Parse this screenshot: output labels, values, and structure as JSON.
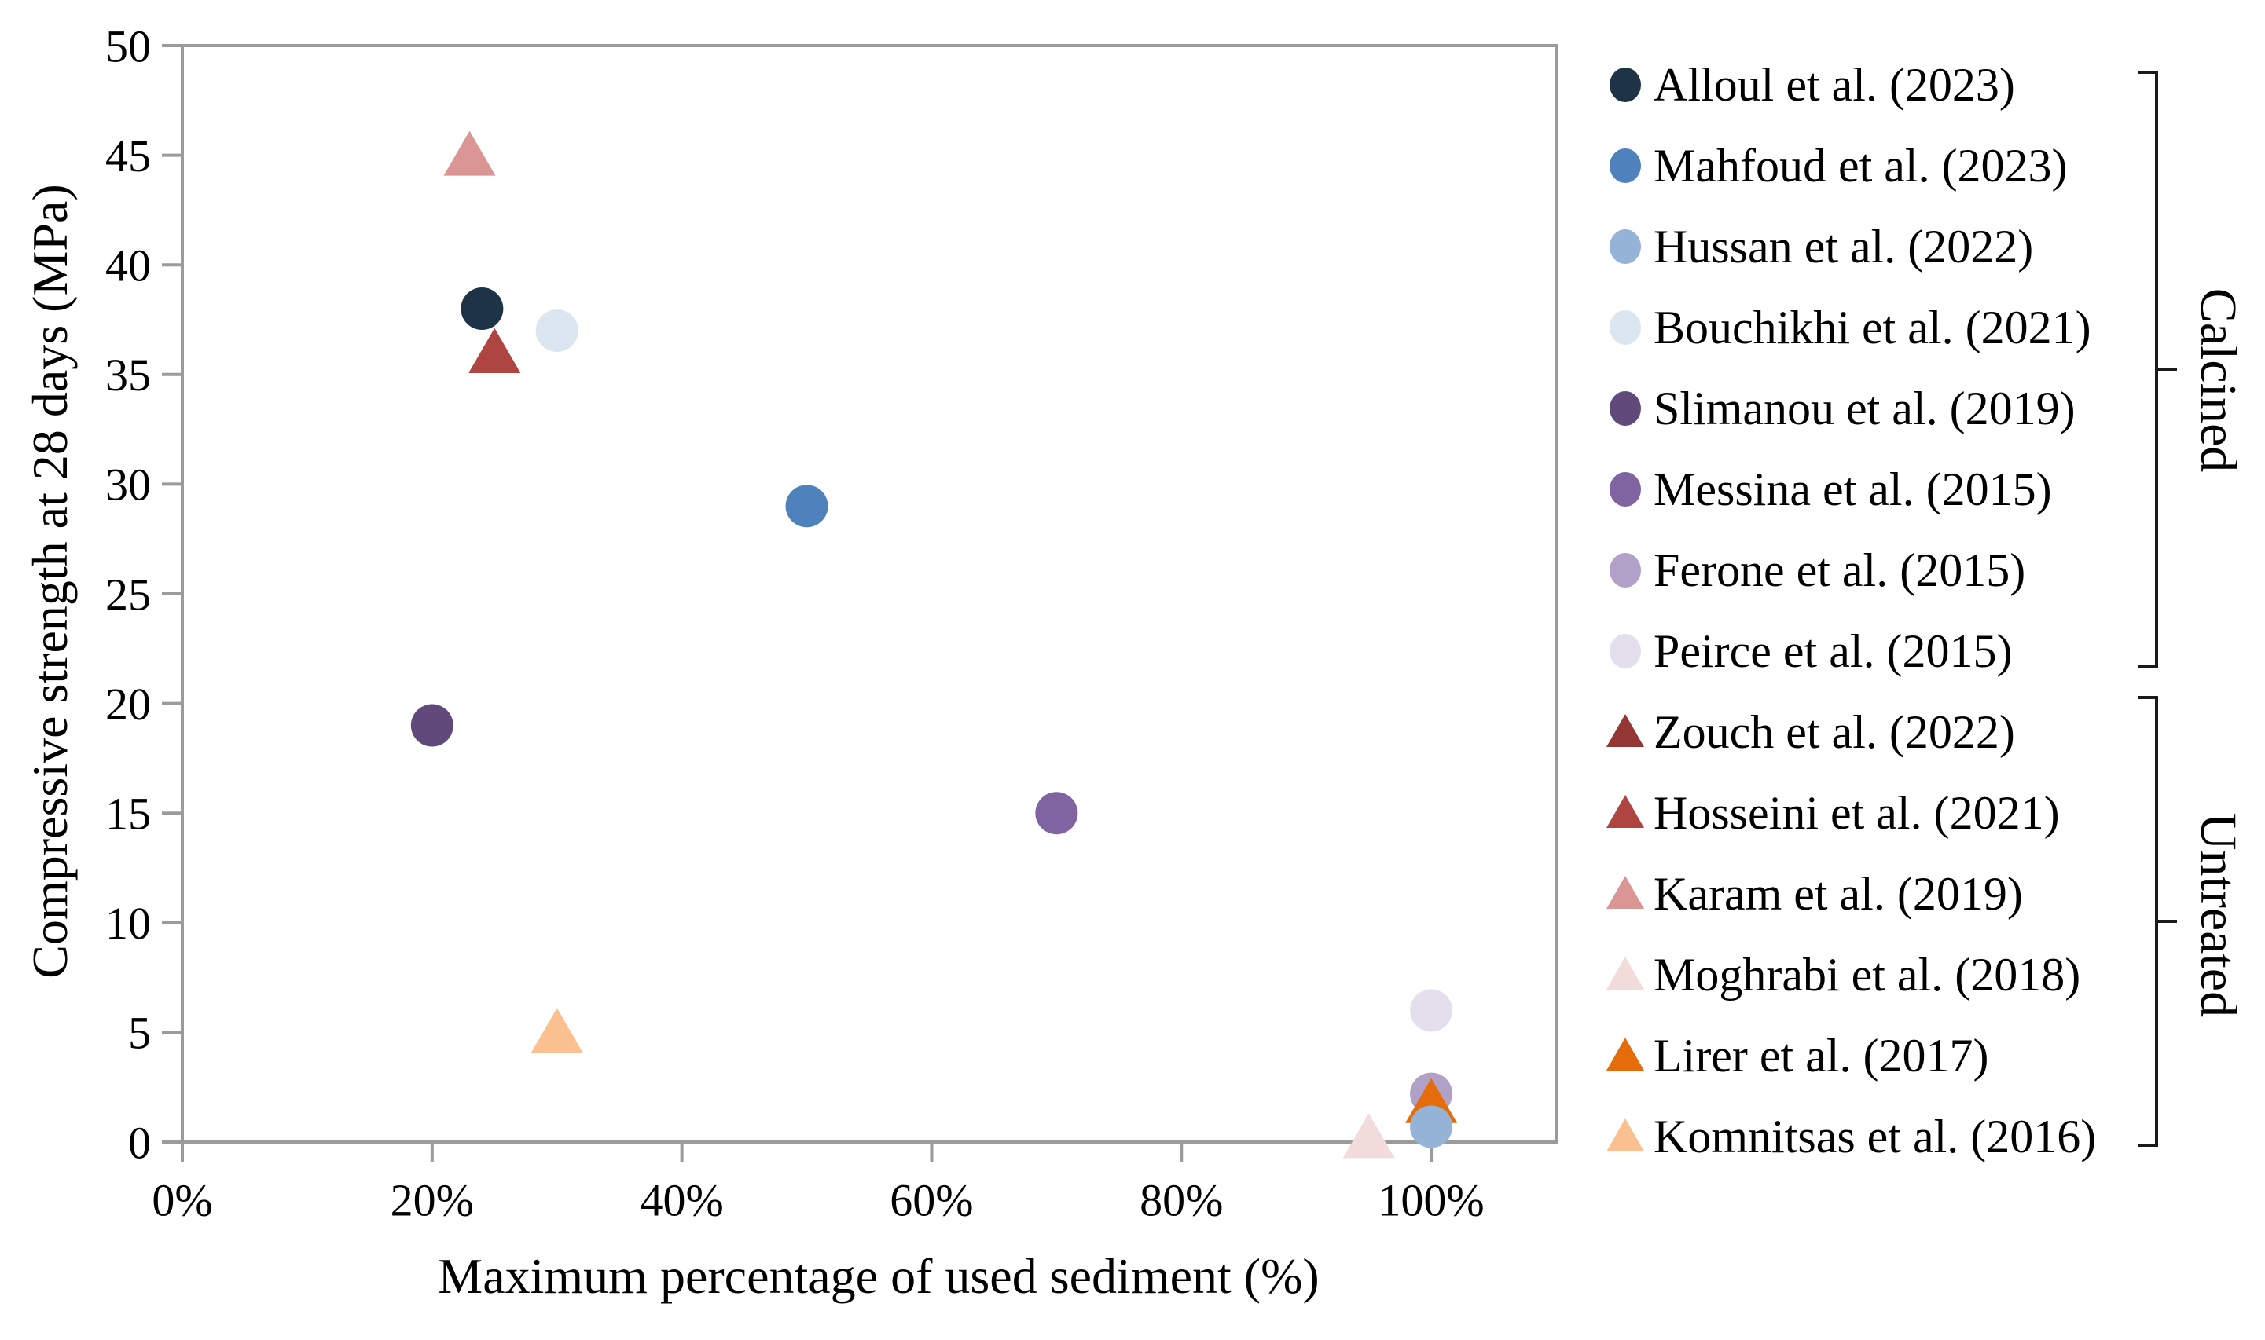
{
  "chart_data": {
    "type": "scatter",
    "title": "",
    "xlabel": "Maximum percentage of used sediment (%)",
    "ylabel": "Compressive strength at 28 days (MPa)",
    "xlim": [
      0,
      110
    ],
    "ylim": [
      0,
      50
    ],
    "x_ticks": [
      0,
      20,
      40,
      60,
      80,
      100
    ],
    "x_tick_suffix": "%",
    "y_ticks": [
      0,
      5,
      10,
      15,
      20,
      25,
      30,
      35,
      40,
      45,
      50
    ],
    "grid": false,
    "legend_position": "right",
    "axis_color": "#9b9b9b",
    "text_color": "#000000",
    "series": [
      {
        "name": "Alloul et al. (2023)",
        "group": "Calcined",
        "marker": "circle",
        "color": "#1F3347",
        "x": 24,
        "y": 38
      },
      {
        "name": "Mahfoud et al. (2023)",
        "group": "Calcined",
        "marker": "circle",
        "color": "#4F81BD",
        "x": 50,
        "y": 29
      },
      {
        "name": "Hussan et al. (2022)",
        "group": "Calcined",
        "marker": "circle",
        "color": "#95B3D7",
        "x": 100,
        "y": 0.7,
        "z": 13.5
      },
      {
        "name": "Bouchikhi et al. (2021)",
        "group": "Calcined",
        "marker": "circle",
        "color": "#DCE6F1",
        "x": 30,
        "y": 37
      },
      {
        "name": "Slimanou et al. (2019)",
        "group": "Calcined",
        "marker": "circle",
        "color": "#604A7B",
        "x": 20,
        "y": 19
      },
      {
        "name": "Messina et al. (2015)",
        "group": "Calcined",
        "marker": "circle",
        "color": "#8064A2",
        "x": 70,
        "y": 15
      },
      {
        "name": "Ferone et al. (2015)",
        "group": "Calcined",
        "marker": "circle",
        "color": "#B1A0C7",
        "x": 100,
        "y": 2.2
      },
      {
        "name": "Peirce et al. (2015)",
        "group": "Calcined",
        "marker": "circle",
        "color": "#E4DFEC",
        "x": 100,
        "y": 6
      },
      {
        "name": "Zouch et al. (2022)",
        "group": "Untreated",
        "marker": "triangle",
        "color": "#943634",
        "x": 25,
        "y": 36
      },
      {
        "name": "Hosseini et al. (2021)",
        "group": "Untreated",
        "marker": "triangle",
        "color": "#AE4540",
        "x": 25,
        "y": 36
      },
      {
        "name": "Karam et al. (2019)",
        "group": "Untreated",
        "marker": "triangle",
        "color": "#D99694",
        "x": 23,
        "y": 45
      },
      {
        "name": "Moghrabi et al. (2018)",
        "group": "Untreated",
        "marker": "triangle",
        "color": "#F2DCDB",
        "x": 95,
        "y": 0.2
      },
      {
        "name": "Lirer et al. (2017)",
        "group": "Untreated",
        "marker": "triangle",
        "color": "#E46C0A",
        "x": 100,
        "y": 1.8
      },
      {
        "name": "Komnitsas et al. (2016)",
        "group": "Untreated",
        "marker": "triangle",
        "color": "#FAC090",
        "x": 30,
        "y": 5
      }
    ],
    "groups": [
      {
        "label": "Calcined",
        "from": 0,
        "to": 7
      },
      {
        "label": "Untreated",
        "from": 8,
        "to": 13
      }
    ]
  }
}
